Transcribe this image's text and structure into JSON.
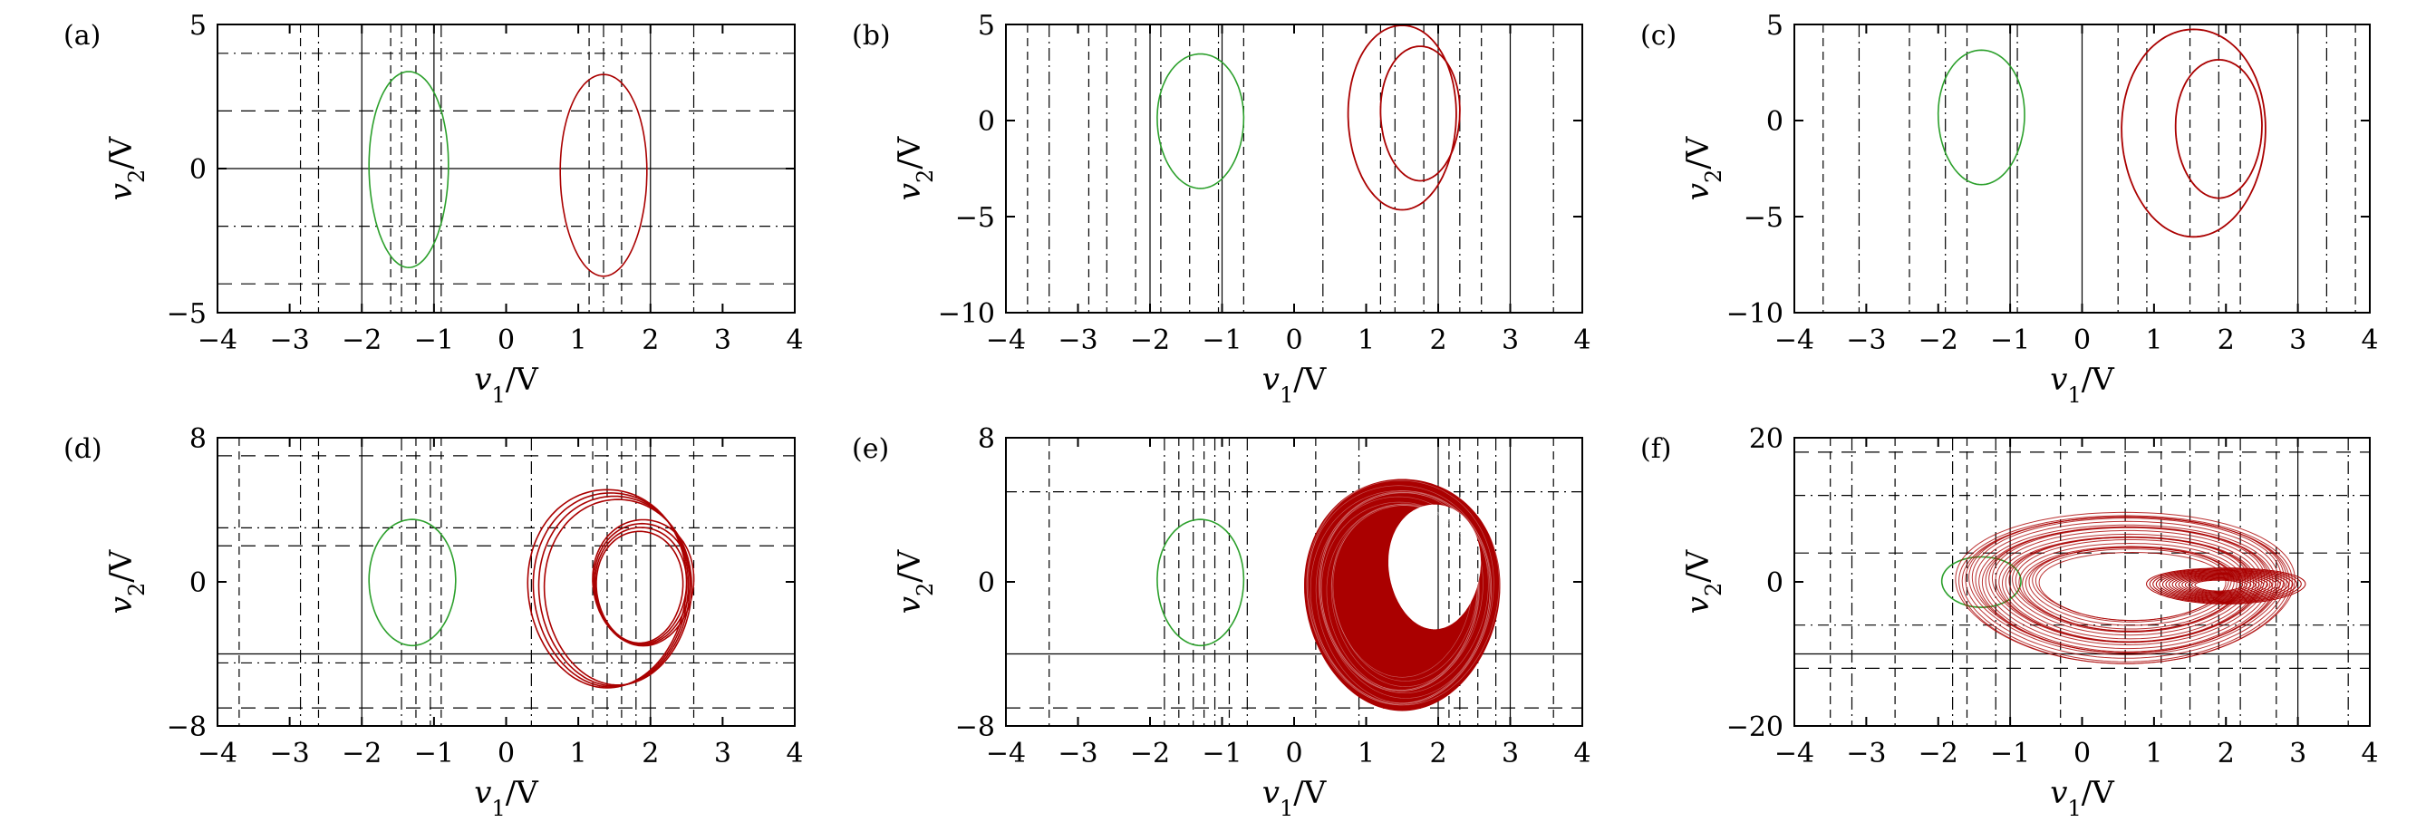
{
  "colors": {
    "green": "#2ca02c",
    "red": "#aa0000",
    "axis": "#000000"
  },
  "chart_data": [
    {
      "panel": "(a)",
      "type": "scatter",
      "xlabel": "v1/V",
      "ylabel": "v2/V",
      "xlim": [
        -4,
        4
      ],
      "ylim": [
        -5,
        5
      ],
      "xticks": [
        "−4",
        "−3",
        "−2",
        "−1",
        "0",
        "1",
        "2",
        "3",
        "4"
      ],
      "yticks": [
        "−5",
        "0",
        "5"
      ],
      "ytick_values": [
        -5,
        0,
        5
      ],
      "solid_v": [
        -2,
        -1,
        2
      ],
      "solid_h": [
        0
      ],
      "dashed_v": [
        -2.85,
        -2.6,
        -1.6,
        -1.45,
        -1.25,
        -0.9,
        1.15,
        1.35,
        1.6,
        2.6
      ],
      "dashed_h": [
        -4,
        -2,
        2,
        4
      ],
      "attractors": [
        {
          "color": "green",
          "shape": "ellipse",
          "cx": -1.35,
          "cy": 0.0,
          "rx": 0.55,
          "ry": 3.4
        },
        {
          "color": "red",
          "shape": "ellipse",
          "cx": 1.35,
          "cy": -0.2,
          "rx": 0.6,
          "ry": 3.5
        }
      ]
    },
    {
      "panel": "(b)",
      "type": "scatter",
      "xlabel": "v1/V",
      "ylabel": "v2/V",
      "xlim": [
        -4,
        4
      ],
      "ylim": [
        -10,
        5
      ],
      "xticks": [
        "−4",
        "−3",
        "−2",
        "−1",
        "0",
        "1",
        "2",
        "3",
        "4"
      ],
      "yticks": [
        "−10",
        "−5",
        "0",
        "5"
      ],
      "ytick_values": [
        -10,
        -5,
        0,
        5
      ],
      "solid_v": [
        -2,
        -1,
        2,
        3
      ],
      "solid_h": [],
      "dashed_v": [
        -3.7,
        -3.4,
        -2.85,
        -2.6,
        -2.2,
        -1.85,
        -1.45,
        -1.05,
        -0.7,
        0.4,
        1.2,
        1.4,
        1.8,
        2.3,
        2.6,
        3.6
      ],
      "dashed_h": [],
      "attractors": [
        {
          "color": "green",
          "shape": "ellipse",
          "cx": -1.3,
          "cy": 0.0,
          "rx": 0.6,
          "ry": 3.5
        },
        {
          "color": "red",
          "shape": "double_scroll",
          "cx": 1.55,
          "cy": 0.2,
          "rx": 0.75,
          "ry": 4.8,
          "rx2": 0.55,
          "ry2": 3.5,
          "dx": 0.2
        }
      ]
    },
    {
      "panel": "(c)",
      "type": "scatter",
      "xlabel": "v1/V",
      "ylabel": "v2/V",
      "xlim": [
        -4,
        4
      ],
      "ylim": [
        -10,
        5
      ],
      "xticks": [
        "−4",
        "−3",
        "−2",
        "−1",
        "0",
        "1",
        "2",
        "3",
        "4"
      ],
      "yticks": [
        "−10",
        "−5",
        "0",
        "5"
      ],
      "ytick_values": [
        -10,
        -5,
        0,
        5
      ],
      "solid_v": [
        -1,
        0,
        3
      ],
      "solid_h": [],
      "dashed_v": [
        -3.6,
        -3.1,
        -2.4,
        -1.9,
        -1.6,
        -0.9,
        0.5,
        0.9,
        1.5,
        1.9,
        2.2,
        3.4,
        3.8
      ],
      "dashed_h": [],
      "attractors": [
        {
          "color": "green",
          "shape": "ellipse",
          "cx": -1.4,
          "cy": 0.2,
          "rx": 0.6,
          "ry": 3.5
        },
        {
          "color": "red",
          "shape": "double_scroll",
          "cx": 1.6,
          "cy": -0.6,
          "rx": 1.0,
          "ry": 5.4,
          "rx2": 0.6,
          "ry2": 3.6,
          "dx": 0.3
        }
      ]
    },
    {
      "panel": "(d)",
      "type": "scatter",
      "xlabel": "v1/V",
      "ylabel": "v2/V",
      "xlim": [
        -4,
        4
      ],
      "ylim": [
        -8,
        8
      ],
      "xticks": [
        "−4",
        "−3",
        "−2",
        "−1",
        "0",
        "1",
        "2",
        "3",
        "4"
      ],
      "yticks": [
        "−8",
        "0",
        "8"
      ],
      "ytick_values": [
        -8,
        0,
        8
      ],
      "solid_v": [
        -2,
        2
      ],
      "solid_h": [
        -4
      ],
      "dashed_v": [
        -3.7,
        -2.85,
        -2.6,
        -1.45,
        -1.25,
        -1.05,
        -0.9,
        0.35,
        1.2,
        1.4,
        1.6,
        1.8,
        2.6
      ],
      "dashed_h": [
        -7,
        -4.5,
        2,
        3,
        7
      ],
      "attractors": [
        {
          "color": "green",
          "shape": "ellipse",
          "cx": -1.3,
          "cy": 0.0,
          "rx": 0.6,
          "ry": 3.5
        },
        {
          "color": "red",
          "shape": "multi_loop",
          "cx": 1.5,
          "cy": -0.3,
          "rx": 1.1,
          "ry": 5.5,
          "rx2": 0.7,
          "ry2": 3.5,
          "dx": 0.4,
          "loops": 4
        }
      ]
    },
    {
      "panel": "(e)",
      "type": "scatter",
      "xlabel": "v1/V",
      "ylabel": "v2/V",
      "xlim": [
        -4,
        4
      ],
      "ylim": [
        -8,
        8
      ],
      "xticks": [
        "−4",
        "−3",
        "−2",
        "−1",
        "0",
        "1",
        "2",
        "3",
        "4"
      ],
      "yticks": [
        "−8",
        "0",
        "8"
      ],
      "ytick_values": [
        -8,
        0,
        8
      ],
      "solid_v": [
        2,
        3
      ],
      "solid_h": [
        -4
      ],
      "dashed_v": [
        -3.4,
        -1.8,
        -1.6,
        -1.4,
        -1.25,
        -1.1,
        -0.9,
        -0.65,
        0.3,
        0.9,
        2.15,
        2.3,
        2.55,
        2.8,
        3.6
      ],
      "dashed_h": [
        -7,
        5
      ],
      "attractors": [
        {
          "color": "green",
          "shape": "ellipse",
          "cx": -1.3,
          "cy": 0.0,
          "rx": 0.6,
          "ry": 3.5
        },
        {
          "color": "red",
          "shape": "filled_ring",
          "cx": 1.5,
          "cy": -0.6,
          "rx": 1.35,
          "ry": 6.4,
          "hole_cx": 1.95,
          "hole_cy": 0.9,
          "hole_rx": 0.65,
          "hole_ry": 3.5
        }
      ]
    },
    {
      "panel": "(f)",
      "type": "scatter",
      "xlabel": "v1/V",
      "ylabel": "v2/V",
      "xlim": [
        -4,
        4
      ],
      "ylim": [
        -20,
        20
      ],
      "xticks": [
        "−4",
        "−3",
        "−2",
        "−1",
        "0",
        "1",
        "2",
        "3",
        "4"
      ],
      "yticks": [
        "−20",
        "0",
        "20"
      ],
      "ytick_values": [
        -20,
        0,
        20
      ],
      "solid_v": [
        -1,
        3
      ],
      "solid_h": [
        -10
      ],
      "dashed_v": [
        -3.5,
        -3.2,
        -2.6,
        -1.8,
        -1.6,
        -1.2,
        -0.3,
        0.6,
        1.1,
        1.5,
        1.9,
        2.2,
        2.7,
        3.7
      ],
      "dashed_h": [
        -12,
        -6,
        4,
        12,
        18
      ],
      "attractors": [
        {
          "color": "green",
          "shape": "ellipse",
          "cx": -1.4,
          "cy": 0.0,
          "rx": 0.55,
          "ry": 3.5
        },
        {
          "color": "red",
          "shape": "wide_scroll",
          "cx": 0.65,
          "cy": -0.5,
          "rx": 2.35,
          "ry": 10.5,
          "inner_cx": 1.9,
          "inner_rx": 1.1,
          "inner_ry": 2.5
        }
      ]
    }
  ]
}
